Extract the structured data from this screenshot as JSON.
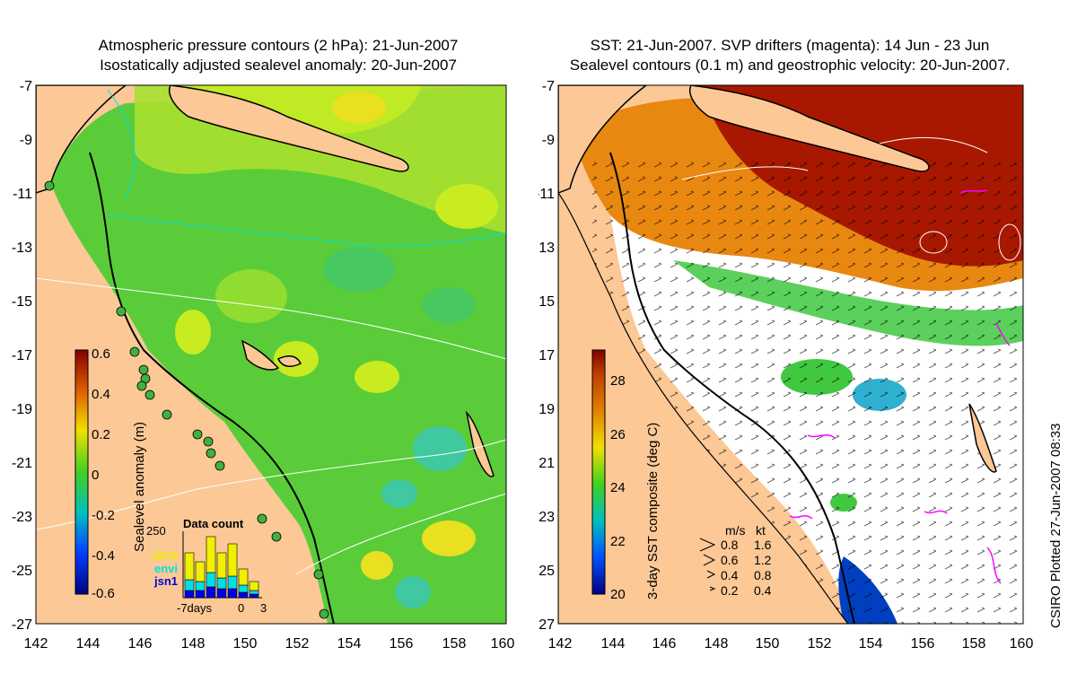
{
  "left_panel": {
    "title_line1": "Atmospheric pressure contours (2 hPa): 21-Jun-2007",
    "title_line2": "Isostatically adjusted sealevel anomaly: 20-Jun-2007",
    "y_ticks": [
      "-7",
      "-9",
      "-11",
      "-13",
      "-15",
      "-17",
      "-19",
      "-21",
      "-23",
      "-25",
      "-27"
    ],
    "x_ticks": [
      "142",
      "144",
      "146",
      "148",
      "150",
      "152",
      "154",
      "156",
      "158",
      "160"
    ],
    "colorbar": {
      "label": "Sealevel anomaly (m)",
      "ticks": [
        "0.6",
        "0.4",
        "0.2",
        "0",
        "-0.2",
        "-0.4",
        "-0.6"
      ],
      "range": [
        -0.6,
        0.6
      ]
    },
    "data_count": {
      "title": "Data count",
      "max_label": "250",
      "legend": [
        {
          "name": "GFO",
          "color": "#f0f000"
        },
        {
          "name": "envi",
          "color": "#00e0e0"
        },
        {
          "name": "jsn1",
          "color": "#0000e0"
        }
      ],
      "x_labels": [
        "-7days",
        "0",
        "3"
      ]
    }
  },
  "right_panel": {
    "title_line1": "SST: 21-Jun-2007. SVP drifters (magenta): 14 Jun - 23 Jun",
    "title_line2": "Sealevel contours (0.1 m) and geostrophic velocity: 20-Jun-2007.",
    "y_ticks": [
      "-7",
      "-9",
      "-11",
      "-13",
      "-15",
      "-17",
      "-19",
      "-21",
      "-23",
      "-25",
      "-27"
    ],
    "x_ticks": [
      "142",
      "144",
      "146",
      "148",
      "150",
      "152",
      "154",
      "156",
      "158",
      "160"
    ],
    "colorbar": {
      "label": "3-day SST composite (deg C)",
      "ticks": [
        "28",
        "26",
        "24",
        "22",
        "20"
      ],
      "range": [
        20,
        29
      ]
    },
    "velocity_legend": {
      "header_ms": "m/s",
      "header_kt": "kt",
      "rows": [
        {
          "ms": "0.8",
          "kt": "1.6"
        },
        {
          "ms": "0.6",
          "kt": "1.2"
        },
        {
          "ms": "0.4",
          "kt": "0.8"
        },
        {
          "ms": "0.2",
          "kt": "0.4"
        }
      ]
    }
  },
  "credit": "CSIRO Plotted 27-Jun-2007 08:33"
}
